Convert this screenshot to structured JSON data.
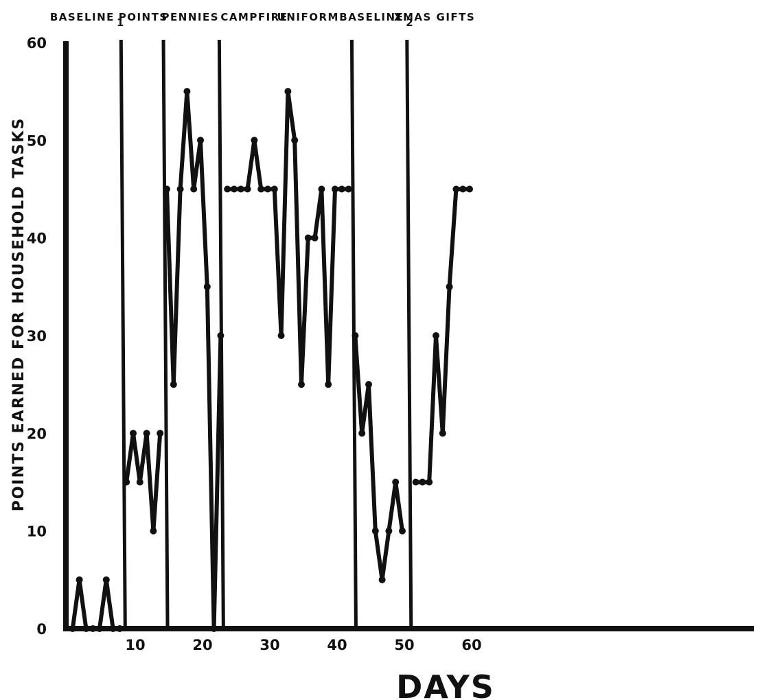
{
  "chart_data": {
    "type": "line",
    "xlabel": "DAYS",
    "ylabel": "POINTS EARNED FOR HOUSEHOLD TASKS",
    "xlim": [
      0,
      65
    ],
    "ylim": [
      0,
      60
    ],
    "x_ticks": [
      10,
      20,
      30,
      40,
      50,
      60
    ],
    "y_ticks": [
      0,
      10,
      20,
      30,
      40,
      50,
      60
    ],
    "grid": false,
    "legend": "none",
    "line_color": "#111111",
    "phase_boundaries": [
      8.5,
      14.8,
      23.1,
      42.8,
      51.0
    ],
    "phases": [
      {
        "label": "BASELINE",
        "subscript": "1",
        "x_center": 3.2
      },
      {
        "label": "POINTS",
        "subscript": "",
        "x_center": 11.5
      },
      {
        "label": "PENNIES",
        "subscript": "",
        "x_center": 18.5
      },
      {
        "label": "CAMPFIRE",
        "subscript": "",
        "x_center": 28.0
      },
      {
        "label": "UNIFORM",
        "subscript": "",
        "x_center": 36.0
      },
      {
        "label": "BASELINE",
        "subscript": "2",
        "x_center": 46.2
      },
      {
        "label": "XMAS GIFTS",
        "subscript": "",
        "x_center": 54.8
      }
    ],
    "segments": [
      {
        "phase": "BASELINE 1",
        "x": [
          1,
          2,
          3,
          4,
          5,
          6,
          7,
          8
        ],
        "y": [
          0,
          5,
          0,
          0,
          0,
          5,
          0,
          0
        ]
      },
      {
        "phase": "POINTS",
        "x": [
          9,
          10,
          11,
          12,
          13,
          14
        ],
        "y": [
          15,
          20,
          15,
          20,
          10,
          20
        ]
      },
      {
        "phase": "PENNIES",
        "x": [
          15,
          16,
          17,
          18,
          19,
          20,
          21,
          22,
          23
        ],
        "y": [
          45,
          25,
          45,
          55,
          45,
          50,
          35,
          0,
          30
        ]
      },
      {
        "phase": "CAMPFIRE / UNIFORM",
        "x": [
          24,
          25,
          26,
          27,
          28,
          29,
          30,
          31,
          32,
          33,
          34,
          35,
          36,
          37,
          38,
          39,
          40,
          41,
          42
        ],
        "y": [
          45,
          45,
          45,
          45,
          50,
          45,
          45,
          45,
          30,
          55,
          50,
          25,
          40,
          40,
          45,
          25,
          45,
          45,
          45
        ]
      },
      {
        "phase": "BASELINE 2",
        "x": [
          43,
          44,
          45,
          46,
          47,
          48,
          49,
          50
        ],
        "y": [
          30,
          20,
          25,
          10,
          5,
          10,
          15,
          10
        ]
      },
      {
        "phase": "XMAS GIFTS",
        "x": [
          52,
          53,
          54,
          55,
          56,
          57,
          58,
          59,
          60
        ],
        "y": [
          15,
          15,
          15,
          30,
          20,
          35,
          45,
          45,
          45
        ]
      }
    ]
  }
}
